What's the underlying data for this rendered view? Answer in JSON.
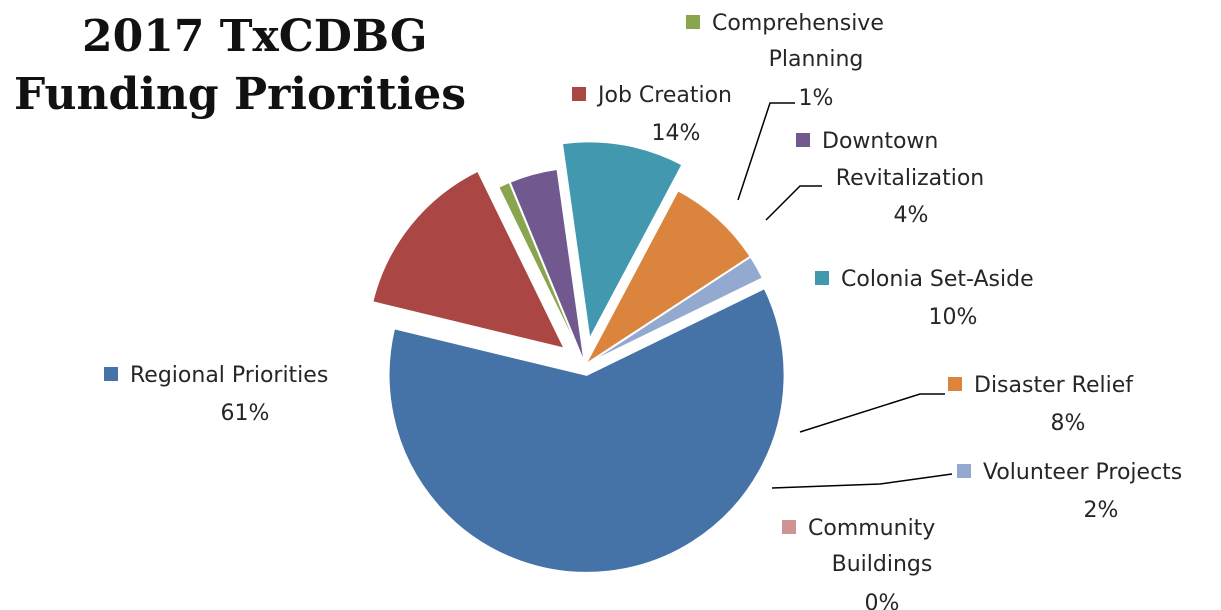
{
  "title_line1": "2017 TxCDBG",
  "title_line2": "Funding Priorities",
  "chart_data": {
    "type": "pie",
    "title": "2017 TxCDBG Funding Priorities",
    "legend": "labels-next-to-slices",
    "slices": [
      {
        "name": "Regional Priorities",
        "label_lines": [
          "Regional Priorities"
        ],
        "pct_label": "61%",
        "value": 61,
        "color": "#4572A7"
      },
      {
        "name": "Job Creation",
        "label_lines": [
          "Job Creation"
        ],
        "pct_label": "14%",
        "value": 14,
        "color": "#AA4643"
      },
      {
        "name": "Comprehensive Planning",
        "label_lines": [
          "Comprehensive",
          "Planning"
        ],
        "pct_label": "1%",
        "value": 1,
        "color": "#89A54E"
      },
      {
        "name": "Downtown Revitalization",
        "label_lines": [
          "Downtown",
          "Revitalization"
        ],
        "pct_label": "4%",
        "value": 4,
        "color": "#71588F"
      },
      {
        "name": "Colonia Set-Aside",
        "label_lines": [
          "Colonia Set-Aside"
        ],
        "pct_label": "10%",
        "value": 10,
        "color": "#4198AF"
      },
      {
        "name": "Disaster Relief",
        "label_lines": [
          "Disaster Relief"
        ],
        "pct_label": "8%",
        "value": 8,
        "color": "#DB843D"
      },
      {
        "name": "Volunteer Projects",
        "label_lines": [
          "Volunteer Projects"
        ],
        "pct_label": "2%",
        "value": 2,
        "color": "#93A9CF"
      },
      {
        "name": "Community Buildings",
        "label_lines": [
          "Community",
          "Buildings"
        ],
        "pct_label": "0%",
        "value": 0,
        "color": "#D19392"
      }
    ]
  }
}
